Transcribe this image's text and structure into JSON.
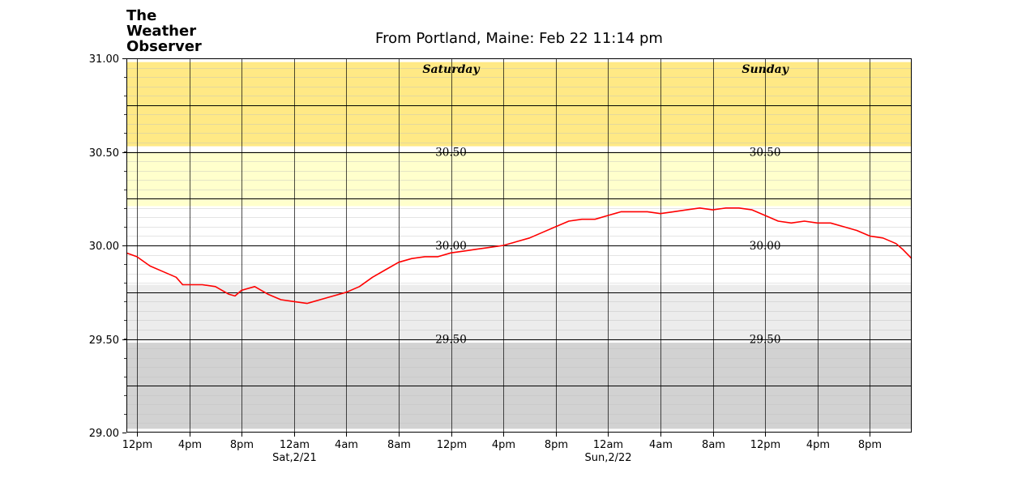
{
  "brand": {
    "line1": "The",
    "line2": "Weather",
    "line3": "Observer"
  },
  "chart_data": {
    "type": "line",
    "title": "From Portland, Maine: Feb 22 11:14 pm",
    "xlabel": "",
    "ylabel": "",
    "ylim": [
      29.0,
      31.0
    ],
    "x_range_hours_from_fri_12pm": [
      -0.8,
      59.2
    ],
    "y_ticks": [
      29.0,
      29.5,
      30.0,
      30.5,
      31.0
    ],
    "y_tick_labels": [
      "29.00",
      "29.50",
      "30.00",
      "30.50",
      "31.00"
    ],
    "x_ticks": [
      {
        "hour": 0,
        "label": "12pm",
        "sublabel": ""
      },
      {
        "hour": 4,
        "label": "4pm",
        "sublabel": ""
      },
      {
        "hour": 8,
        "label": "8pm",
        "sublabel": ""
      },
      {
        "hour": 12,
        "label": "12am",
        "sublabel": "Sat,2/21"
      },
      {
        "hour": 16,
        "label": "4am",
        "sublabel": ""
      },
      {
        "hour": 20,
        "label": "8am",
        "sublabel": ""
      },
      {
        "hour": 24,
        "label": "12pm",
        "sublabel": ""
      },
      {
        "hour": 28,
        "label": "4pm",
        "sublabel": ""
      },
      {
        "hour": 32,
        "label": "8pm",
        "sublabel": ""
      },
      {
        "hour": 36,
        "label": "12am",
        "sublabel": "Sun,2/22"
      },
      {
        "hour": 40,
        "label": "4am",
        "sublabel": ""
      },
      {
        "hour": 44,
        "label": "8am",
        "sublabel": ""
      },
      {
        "hour": 48,
        "label": "12pm",
        "sublabel": ""
      },
      {
        "hour": 52,
        "label": "4pm",
        "sublabel": ""
      },
      {
        "hour": 56,
        "label": "8pm",
        "sublabel": ""
      }
    ],
    "bands": [
      {
        "from": 30.53,
        "to": 30.98,
        "color": "#ffe985"
      },
      {
        "from": 30.21,
        "to": 30.5,
        "color": "#ffffcc"
      },
      {
        "from": 29.5,
        "to": 29.79,
        "color": "#ececec"
      },
      {
        "from": 29.02,
        "to": 29.48,
        "color": "#d2d2d2"
      }
    ],
    "day_labels": [
      {
        "hour": 24,
        "text": "Saturday"
      },
      {
        "hour": 48,
        "text": "Sunday"
      }
    ],
    "inplot_labels": [
      {
        "hour": 24,
        "value": 30.5,
        "text": "30.50"
      },
      {
        "hour": 24,
        "value": 30.0,
        "text": "30.00"
      },
      {
        "hour": 24,
        "value": 29.5,
        "text": "29.50"
      },
      {
        "hour": 48,
        "value": 30.5,
        "text": "30.50"
      },
      {
        "hour": 48,
        "value": 30.0,
        "text": "30.00"
      },
      {
        "hour": 48,
        "value": 29.5,
        "text": "29.50"
      }
    ],
    "series": [
      {
        "color": "#ff0000",
        "points": [
          [
            -0.8,
            29.96
          ],
          [
            0,
            29.94
          ],
          [
            1,
            29.89
          ],
          [
            2,
            29.86
          ],
          [
            3,
            29.83
          ],
          [
            3.5,
            29.79
          ],
          [
            4,
            29.79
          ],
          [
            5,
            29.79
          ],
          [
            6,
            29.78
          ],
          [
            7,
            29.74
          ],
          [
            7.5,
            29.73
          ],
          [
            8,
            29.76
          ],
          [
            9,
            29.78
          ],
          [
            10,
            29.74
          ],
          [
            11,
            29.71
          ],
          [
            12,
            29.7
          ],
          [
            13,
            29.69
          ],
          [
            14,
            29.71
          ],
          [
            15,
            29.73
          ],
          [
            16,
            29.75
          ],
          [
            17,
            29.78
          ],
          [
            18,
            29.83
          ],
          [
            19,
            29.87
          ],
          [
            20,
            29.91
          ],
          [
            21,
            29.93
          ],
          [
            22,
            29.94
          ],
          [
            23,
            29.94
          ],
          [
            24,
            29.96
          ],
          [
            25,
            29.97
          ],
          [
            26,
            29.98
          ],
          [
            27,
            29.99
          ],
          [
            28,
            30.0
          ],
          [
            29,
            30.02
          ],
          [
            30,
            30.04
          ],
          [
            31,
            30.07
          ],
          [
            32,
            30.1
          ],
          [
            33,
            30.13
          ],
          [
            34,
            30.14
          ],
          [
            35,
            30.14
          ],
          [
            36,
            30.16
          ],
          [
            37,
            30.18
          ],
          [
            38,
            30.18
          ],
          [
            39,
            30.18
          ],
          [
            40,
            30.17
          ],
          [
            41,
            30.18
          ],
          [
            42,
            30.19
          ],
          [
            43,
            30.2
          ],
          [
            44,
            30.19
          ],
          [
            45,
            30.2
          ],
          [
            46,
            30.2
          ],
          [
            47,
            30.19
          ],
          [
            48,
            30.16
          ],
          [
            49,
            30.13
          ],
          [
            50,
            30.12
          ],
          [
            51,
            30.13
          ],
          [
            52,
            30.12
          ],
          [
            53,
            30.12
          ],
          [
            54,
            30.1
          ],
          [
            55,
            30.08
          ],
          [
            56,
            30.05
          ],
          [
            57,
            30.04
          ],
          [
            58,
            30.01
          ],
          [
            58.5,
            29.98
          ],
          [
            59.2,
            29.93
          ]
        ]
      }
    ]
  }
}
